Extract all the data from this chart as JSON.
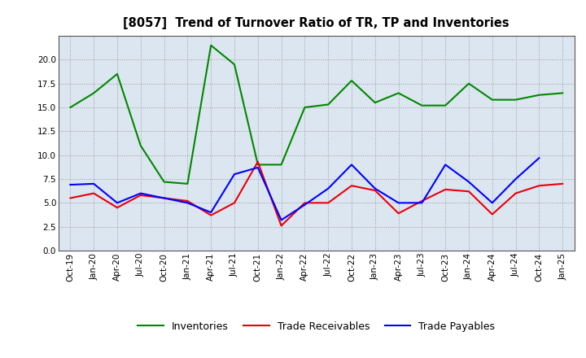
{
  "title": "[8057]  Trend of Turnover Ratio of TR, TP and Inventories",
  "x_labels": [
    "Oct-19",
    "Jan-20",
    "Apr-20",
    "Jul-20",
    "Oct-20",
    "Jan-21",
    "Apr-21",
    "Jul-21",
    "Oct-21",
    "Jan-22",
    "Apr-22",
    "Jul-22",
    "Oct-22",
    "Jan-23",
    "Apr-23",
    "Jul-23",
    "Oct-23",
    "Jan-24",
    "Apr-24",
    "Jul-24",
    "Oct-24",
    "Jan-25"
  ],
  "trade_receivables": [
    5.5,
    6.0,
    4.5,
    5.8,
    5.5,
    5.2,
    3.7,
    5.0,
    9.3,
    2.6,
    5.0,
    5.0,
    6.8,
    6.3,
    3.9,
    5.2,
    6.4,
    6.2,
    3.8,
    6.0,
    6.8,
    7.0
  ],
  "trade_payables": [
    6.9,
    7.0,
    5.0,
    6.0,
    5.5,
    5.0,
    4.0,
    8.0,
    8.7,
    3.2,
    4.8,
    6.5,
    9.0,
    6.5,
    5.0,
    5.0,
    9.0,
    7.2,
    5.0,
    7.5,
    9.7,
    null
  ],
  "inventories": [
    15.0,
    16.5,
    18.5,
    11.0,
    7.2,
    7.0,
    21.5,
    19.5,
    9.0,
    9.0,
    15.0,
    15.3,
    17.8,
    15.5,
    16.5,
    15.2,
    15.2,
    17.5,
    15.8,
    15.8,
    16.3,
    16.5
  ],
  "tr_color": "#e8000d",
  "tp_color": "#0000ff",
  "inv_color": "#008800",
  "ylim": [
    0,
    22.5
  ],
  "yticks": [
    0.0,
    2.5,
    5.0,
    7.5,
    10.0,
    12.5,
    15.0,
    17.5,
    20.0
  ],
  "plot_bg_color": "#dce6f0",
  "fig_bg_color": "#ffffff",
  "grid_color": "#999999",
  "legend_labels": [
    "Trade Receivables",
    "Trade Payables",
    "Inventories"
  ]
}
